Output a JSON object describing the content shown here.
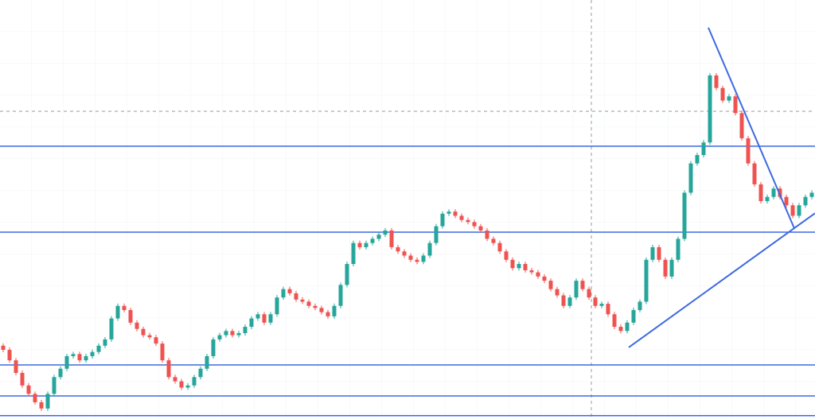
{
  "chart_data": {
    "type": "candlestick",
    "ylim": [
      0,
      100
    ],
    "xlim": [
      -0.5,
      127.5
    ],
    "up_color": "#26a69a",
    "down_color": "#ef5350",
    "line_color": "#3d6ae0",
    "open": [
      17.5,
      16.5,
      14,
      11,
      8,
      6,
      4,
      2.5,
      6,
      10,
      12,
      15,
      15.5,
      14,
      15,
      16,
      17.5,
      19,
      24,
      27,
      26,
      23,
      21.5,
      20,
      19.5,
      18,
      14,
      10,
      9,
      7.5,
      8,
      10,
      12,
      15,
      19,
      20,
      21,
      20,
      20.5,
      22,
      24,
      25,
      23,
      25,
      29,
      31,
      30,
      28.5,
      28,
      27,
      26.5,
      25.5,
      24.5,
      27,
      32,
      37,
      42,
      41,
      42,
      43,
      44,
      45,
      41,
      40,
      39,
      38,
      37.5,
      39,
      42,
      46,
      49,
      49.5,
      48.5,
      47.5,
      47,
      46,
      45,
      43,
      42,
      40,
      38,
      36,
      37,
      35.5,
      35,
      34,
      33,
      31,
      29.5,
      27,
      29,
      33,
      31,
      29,
      27,
      27.5,
      25,
      22,
      21,
      23,
      26,
      28,
      38,
      41,
      38,
      34,
      38,
      43,
      54,
      61,
      63,
      66,
      82,
      79,
      76,
      77,
      73,
      67,
      61,
      56,
      52,
      53,
      55,
      53,
      51,
      48.5,
      51,
      53
    ],
    "close": [
      16.5,
      14,
      11,
      8,
      6,
      4,
      2.5,
      6,
      10,
      12,
      15,
      15.5,
      14,
      15,
      16,
      17.5,
      19,
      24,
      27,
      26,
      23,
      21.5,
      20,
      19.5,
      18,
      14,
      10,
      9,
      7.5,
      8,
      10,
      12,
      15,
      19,
      20,
      21,
      20,
      20.5,
      22,
      24,
      25,
      23,
      25,
      29,
      31,
      30,
      28.5,
      28,
      27,
      26.5,
      25.5,
      24.5,
      27,
      32,
      37,
      42,
      41,
      42,
      43,
      44,
      45,
      41,
      40,
      39,
      38,
      37.5,
      39,
      42,
      46,
      49,
      49.5,
      48.5,
      47.5,
      47,
      46,
      45,
      43,
      42,
      40,
      38,
      36,
      37,
      35.5,
      35,
      34,
      33,
      31,
      29.5,
      27,
      29,
      33,
      31,
      29,
      27,
      27.5,
      25,
      22,
      21,
      23,
      26,
      28,
      38,
      41,
      38,
      34,
      38,
      43,
      54,
      61,
      63,
      66,
      82,
      79,
      76,
      77,
      73,
      67,
      61,
      56,
      52,
      53,
      55,
      53,
      51,
      48.5,
      51,
      53,
      54
    ],
    "levels": [
      65.1,
      44.6,
      12.9,
      5.5,
      0.8
    ],
    "trendlines": [
      {
        "x": [
          98.25,
          127.5
        ],
        "y": [
          17.1,
          49.1
        ]
      },
      {
        "x": [
          110.75,
          124.25
        ],
        "y": [
          93.4,
          45.5
        ]
      }
    ]
  }
}
